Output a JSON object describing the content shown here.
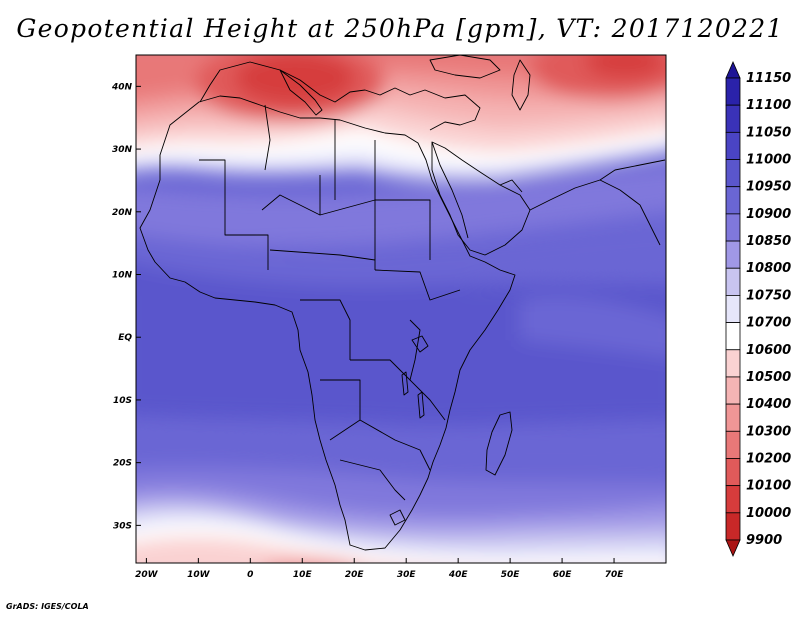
{
  "title": "Geopotential Height at 250hPa [gpm], VT: 2017120221",
  "footer": "GrADS: IGES/COLA",
  "map": {
    "region": "Africa and surrounding seas",
    "projection": "latlon",
    "lon_range": [
      -22,
      80
    ],
    "lat_range": [
      -36,
      45
    ],
    "x_ticks": [
      {
        "lon": -20,
        "label": "20W"
      },
      {
        "lon": -10,
        "label": "10W"
      },
      {
        "lon": 0,
        "label": "0"
      },
      {
        "lon": 10,
        "label": "10E"
      },
      {
        "lon": 20,
        "label": "20E"
      },
      {
        "lon": 30,
        "label": "30E"
      },
      {
        "lon": 40,
        "label": "40E"
      },
      {
        "lon": 50,
        "label": "50E"
      },
      {
        "lon": 60,
        "label": "60E"
      },
      {
        "lon": 70,
        "label": "70E"
      }
    ],
    "y_ticks": [
      {
        "lat": 40,
        "label": "40N"
      },
      {
        "lat": 30,
        "label": "30N"
      },
      {
        "lat": 20,
        "label": "20N"
      },
      {
        "lat": 10,
        "label": "10N"
      },
      {
        "lat": 0,
        "label": "EQ"
      },
      {
        "lat": -10,
        "label": "10S"
      },
      {
        "lat": -20,
        "label": "20S"
      },
      {
        "lat": -30,
        "label": "30S"
      }
    ]
  },
  "colorbar": {
    "labels": [
      "11150",
      "11100",
      "11050",
      "11000",
      "10950",
      "10900",
      "10850",
      "10800",
      "10750",
      "10700",
      "10600",
      "10500",
      "10400",
      "10300",
      "10200",
      "10100",
      "10000",
      "9900"
    ],
    "colors": [
      "#1e1496",
      "#2a22aa",
      "#3a32b8",
      "#4a44c4",
      "#5a56cc",
      "#6a66d4",
      "#8078dc",
      "#a098e6",
      "#c8c4f0",
      "#e6e6fa",
      "#ffffff",
      "#fad2d2",
      "#f5b4b4",
      "#f09696",
      "#e87878",
      "#e05a5a",
      "#d63c3c",
      "#c82828",
      "#aa1414"
    ]
  }
}
